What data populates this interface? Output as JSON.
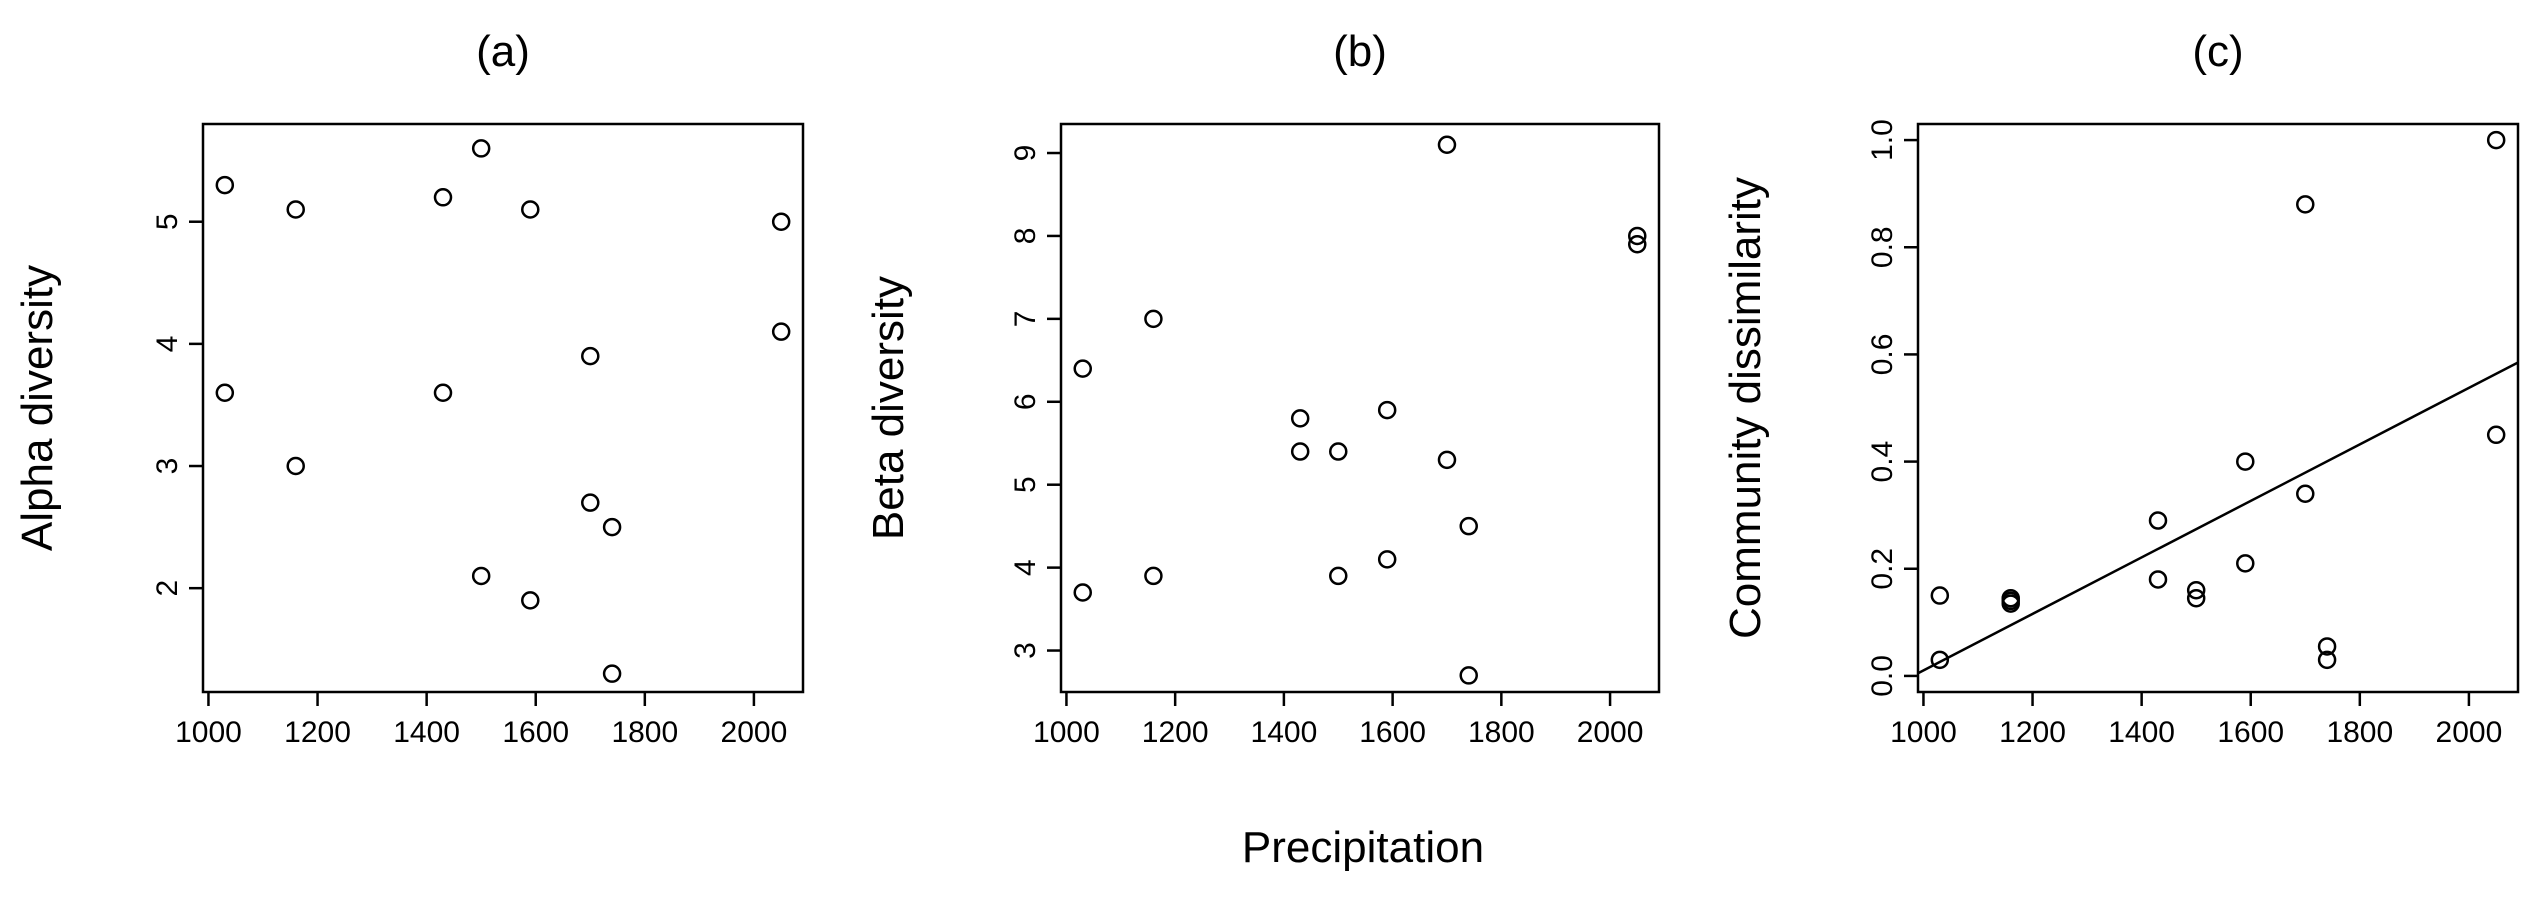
{
  "figure": {
    "common_xlabel": "Precipitation"
  },
  "chart_data": [
    {
      "type": "scatter",
      "title": "(a)",
      "xlabel": "",
      "ylabel": "Alpha diversity",
      "xlim": [
        990,
        2090
      ],
      "ylim": [
        1.15,
        5.8
      ],
      "x_ticks": [
        1000,
        1200,
        1400,
        1600,
        1800,
        2000
      ],
      "y_ticks": [
        2,
        3,
        4,
        5
      ],
      "x": [
        1030,
        1030,
        1160,
        1160,
        1430,
        1430,
        1500,
        1500,
        1590,
        1590,
        1700,
        1700,
        1740,
        1740,
        2050,
        2050
      ],
      "y": [
        5.3,
        3.6,
        5.1,
        3.0,
        5.2,
        3.6,
        5.6,
        2.1,
        5.1,
        1.9,
        3.9,
        2.7,
        2.5,
        1.3,
        5.0,
        4.1
      ]
    },
    {
      "type": "scatter",
      "title": "(b)",
      "xlabel": "",
      "ylabel": "Beta diversity",
      "xlim": [
        990,
        2090
      ],
      "ylim": [
        2.5,
        9.35
      ],
      "x_ticks": [
        1000,
        1200,
        1400,
        1600,
        1800,
        2000
      ],
      "y_ticks": [
        3,
        4,
        5,
        6,
        7,
        8,
        9
      ],
      "x": [
        1030,
        1030,
        1160,
        1160,
        1430,
        1430,
        1500,
        1500,
        1590,
        1590,
        1700,
        1700,
        1740,
        1740,
        2050,
        2050
      ],
      "y": [
        6.4,
        3.7,
        7.0,
        3.9,
        5.8,
        5.4,
        5.4,
        3.9,
        5.9,
        4.1,
        9.1,
        5.3,
        4.5,
        2.7,
        8.0,
        7.9
      ]
    },
    {
      "type": "scatter",
      "title": "(c)",
      "xlabel": "",
      "ylabel": "Community dissimilarity",
      "xlim": [
        990,
        2090
      ],
      "ylim": [
        -0.03,
        1.03
      ],
      "x_ticks": [
        1000,
        1200,
        1400,
        1600,
        1800,
        2000
      ],
      "y_ticks": [
        0.0,
        0.2,
        0.4,
        0.6,
        0.8,
        1.0
      ],
      "y_tick_labels": [
        "0.0",
        "0.2",
        "0.4",
        "0.6",
        "0.8",
        "1.0"
      ],
      "x": [
        1030,
        1030,
        1160,
        1160,
        1160,
        1430,
        1430,
        1500,
        1500,
        1590,
        1590,
        1700,
        1700,
        1740,
        1740,
        2050,
        2050
      ],
      "y": [
        0.15,
        0.03,
        0.145,
        0.14,
        0.135,
        0.29,
        0.18,
        0.16,
        0.145,
        0.4,
        0.21,
        0.88,
        0.34,
        0.055,
        0.03,
        1.0,
        0.45
      ],
      "fit_line": {
        "x": [
          990,
          2090
        ],
        "y": [
          0.005,
          0.585
        ]
      }
    }
  ]
}
